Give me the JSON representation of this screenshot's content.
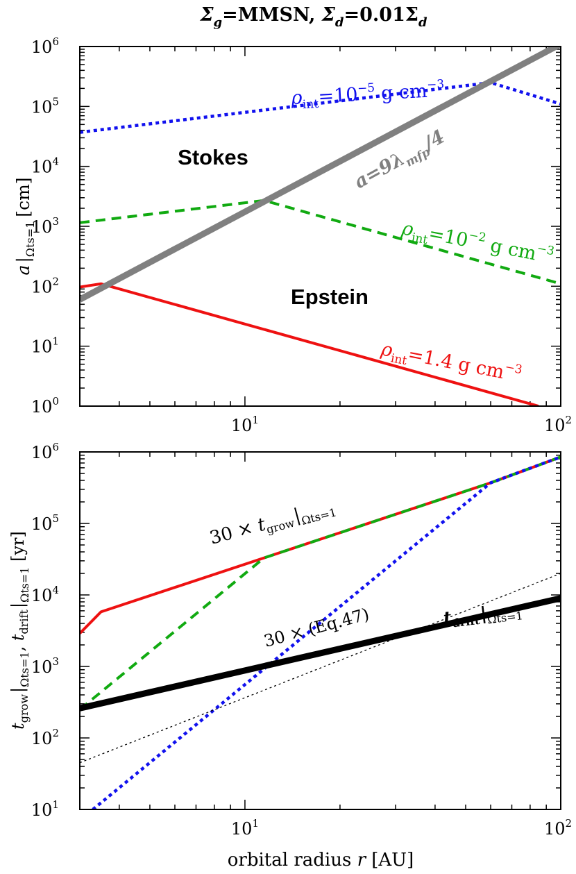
{
  "figure_title": "Σg=MMSN, Σd=0.01Σd",
  "title_parts": {
    "a1": "Σ",
    "a1_sub": "g",
    "a2": "=MMSN,  ",
    "b1": "Σ",
    "b1_sub": "d",
    "b2": "=0.01Σ",
    "b2_sub": "d"
  },
  "colors": {
    "red": "#ee1111",
    "green": "#11aa11",
    "blue": "#1111ee",
    "gray": "#808080",
    "black": "#000000"
  },
  "chart_data": [
    {
      "type": "line",
      "xscale": "log",
      "yscale": "log",
      "xlim": [
        3,
        100
      ],
      "ylim": [
        1,
        1000000
      ],
      "xticks": [
        10,
        100
      ],
      "xtick_labels": [
        [
          "10",
          "1"
        ],
        [
          "10",
          "2"
        ]
      ],
      "yticks": [
        1,
        10,
        100,
        1000,
        10000,
        100000,
        1000000
      ],
      "ytick_labels": [
        [
          "10",
          "0"
        ],
        [
          "10",
          "1"
        ],
        [
          "10",
          "2"
        ],
        [
          "10",
          "3"
        ],
        [
          "10",
          "4"
        ],
        [
          "10",
          "5"
        ],
        [
          "10",
          "6"
        ]
      ],
      "ylabel_parts": {
        "main": "a",
        "sub": "Ωts=1",
        "unit": "[cm]"
      },
      "region_labels": [
        "Stokes",
        "Epstein"
      ],
      "series": [
        {
          "name": "ρint=10−5 g cm−3",
          "color": "#1111ee",
          "style": "dotted",
          "x": [
            3,
            60,
            100
          ],
          "y": [
            37000,
            250000,
            110000
          ]
        },
        {
          "name": "ρint=10−2 g cm−3",
          "color": "#11aa11",
          "style": "dashed",
          "x": [
            3,
            11.5,
            100
          ],
          "y": [
            1150,
            2700,
            110
          ]
        },
        {
          "name": "ρint=1.4 g cm−3",
          "color": "#ee1111",
          "style": "solid",
          "x": [
            3,
            3.5,
            85
          ],
          "y": [
            97,
            110,
            1
          ]
        },
        {
          "name": "a=9λmfp/4",
          "color": "#808080",
          "style": "thick",
          "x": [
            3,
            100
          ],
          "y": [
            60,
            1100000
          ]
        }
      ],
      "annotations": {
        "blue_label": {
          "main": "ρ",
          "sub": "int",
          "val": "=10",
          "exp": "−5",
          "unit": " g cm",
          "unit_exp": "−3"
        },
        "green_label": {
          "main": "ρ",
          "sub": "int",
          "val": "=10",
          "exp": "−2",
          "unit": " g cm",
          "unit_exp": "−3"
        },
        "red_label": {
          "main": "ρ",
          "sub": "int",
          "val": "=1.4 g cm",
          "unit_exp": "−3"
        },
        "gray_label": {
          "main": "a=9λ",
          "sub": "mfp",
          "tail": "/4"
        }
      }
    },
    {
      "type": "line",
      "xscale": "log",
      "yscale": "log",
      "xlim": [
        3,
        100
      ],
      "ylim": [
        10,
        1000000
      ],
      "xticks": [
        10,
        100
      ],
      "xtick_labels": [
        [
          "10",
          "1"
        ],
        [
          "10",
          "2"
        ]
      ],
      "yticks": [
        10,
        100,
        1000,
        10000,
        100000,
        1000000
      ],
      "ytick_labels": [
        [
          "10",
          "1"
        ],
        [
          "10",
          "2"
        ],
        [
          "10",
          "3"
        ],
        [
          "10",
          "4"
        ],
        [
          "10",
          "5"
        ],
        [
          "10",
          "6"
        ]
      ],
      "xlabel_parts": {
        "main": "orbital radius  ",
        "var": "r",
        "unit": " [AU]"
      },
      "ylabel_parts": {
        "a": "t",
        "a_sub": "grow",
        "a_cond": "Ωts=1",
        "sep": ",  ",
        "b": "t",
        "b_sub": "drift",
        "b_cond": "Ωts=1",
        "unit": " [yr]"
      },
      "series": [
        {
          "name": "red (ρint=1.4)",
          "color": "#ee1111",
          "style": "solid",
          "x": [
            3,
            3.5,
            11.5,
            60,
            100
          ],
          "y": [
            2900,
            5800,
            33000,
            370000,
            850000
          ]
        },
        {
          "name": "green (ρint=10−2)",
          "color": "#11aa11",
          "style": "dashed",
          "x": [
            3,
            11.5,
            60,
            100
          ],
          "y": [
            250,
            33000,
            370000,
            850000
          ]
        },
        {
          "name": "blue (ρint=10−5)",
          "color": "#1111ee",
          "style": "dotted",
          "x": [
            3.3,
            60,
            100
          ],
          "y": [
            10,
            370000,
            850000
          ]
        },
        {
          "name": "tdrift",
          "color": "#000000",
          "style": "thick",
          "x": [
            3,
            100
          ],
          "y": [
            260,
            9000
          ]
        },
        {
          "name": "30 × (Eq.47)",
          "color": "#000000",
          "style": "thin-dotted",
          "x": [
            3,
            100
          ],
          "y": [
            45,
            20000
          ]
        }
      ],
      "annotations": {
        "grow_label": {
          "prefix": "30 × ",
          "t": "t",
          "sub": "grow",
          "cond": "Ωts=1"
        },
        "drift_label": {
          "t": "t",
          "sub": "drift",
          "cond": "Ωts=1"
        },
        "eq_label": "30 × (Eq.47)"
      }
    }
  ]
}
